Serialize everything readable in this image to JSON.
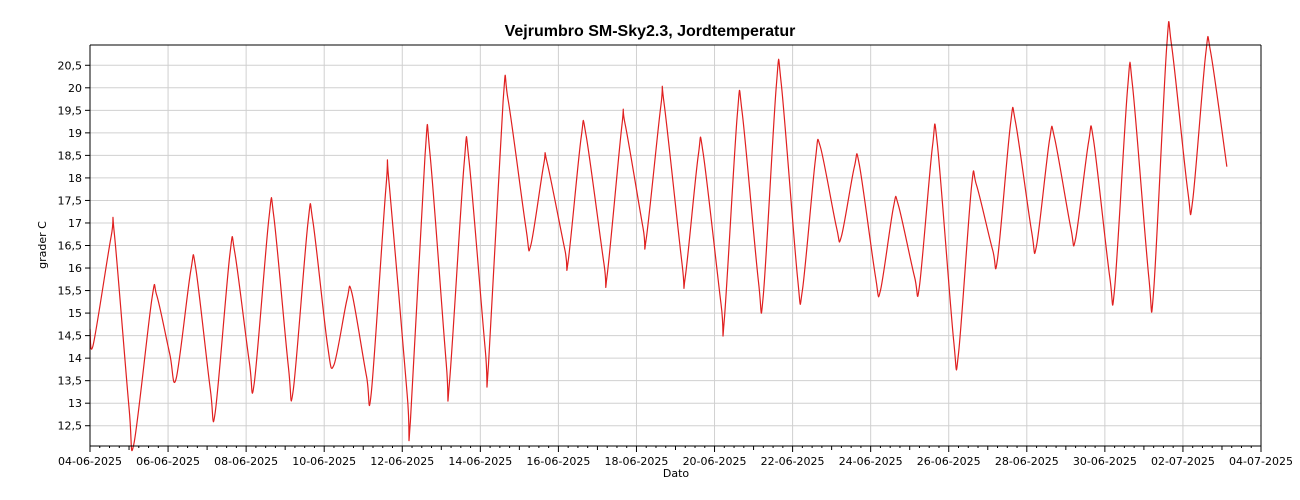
{
  "chart_data": {
    "type": "line",
    "title": "Vejrumbro SM-Sky2.3, Jordtemperatur",
    "xlabel": "Dato",
    "ylabel": "grader C",
    "xlim": [
      "2025-06-04",
      "2025-07-04"
    ],
    "ylim": [
      12.05,
      20.95
    ],
    "x_ticks": [
      "04-06-2025",
      "06-06-2025",
      "08-06-2025",
      "10-06-2025",
      "12-06-2025",
      "14-06-2025",
      "16-06-2025",
      "18-06-2025",
      "20-06-2025",
      "22-06-2025",
      "24-06-2025",
      "26-06-2025",
      "28-06-2025",
      "30-06-2025",
      "02-07-2025",
      "04-07-2025"
    ],
    "y_ticks": [
      "12,5",
      "13",
      "13,5",
      "14",
      "14,5",
      "15",
      "15,5",
      "16",
      "16,5",
      "17",
      "17,5",
      "18",
      "18,5",
      "19",
      "19,5",
      "20",
      "20,5"
    ],
    "y_tick_values": [
      12.5,
      13,
      13.5,
      14,
      14.5,
      15,
      15.5,
      16,
      16.5,
      17,
      17.5,
      18,
      18.5,
      19,
      19.5,
      20,
      20.5
    ],
    "grid": true,
    "series": [
      {
        "color": "#e02020",
        "x": [
          "2025-06-04 00:00",
          "2025-06-04 02:00",
          "2025-06-04 13:00",
          "2025-06-04 15:00",
          "2025-06-05 00:00",
          "2025-06-05 03:00",
          "2025-06-05 14:00",
          "2025-06-05 17:00",
          "2025-06-06 01:00",
          "2025-06-06 05:00",
          "2025-06-06 14:00",
          "2025-06-06 17:00",
          "2025-06-07 02:00",
          "2025-06-07 05:00",
          "2025-06-07 14:00",
          "2025-06-07 17:00",
          "2025-06-08 02:00",
          "2025-06-08 05:00",
          "2025-06-08 14:00",
          "2025-06-08 17:00",
          "2025-06-09 02:00",
          "2025-06-09 05:00",
          "2025-06-09 14:00",
          "2025-06-09 17:00",
          "2025-06-10 02:00",
          "2025-06-10 06:00",
          "2025-06-10 14:00",
          "2025-06-10 17:00",
          "2025-06-11 02:00",
          "2025-06-11 05:00",
          "2025-06-11 14:00",
          "2025-06-11 16:00",
          "2025-06-12 03:00",
          "2025-06-12 05:00",
          "2025-06-12 14:00",
          "2025-06-12 17:00",
          "2025-06-13 03:00",
          "2025-06-13 05:00",
          "2025-06-13 14:00",
          "2025-06-13 17:00",
          "2025-06-14 03:00",
          "2025-06-14 05:00",
          "2025-06-14 14:00",
          "2025-06-14 17:00",
          "2025-06-15 04:00",
          "2025-06-15 07:00",
          "2025-06-15 15:00",
          "2025-06-15 17:00",
          "2025-06-16 04:00",
          "2025-06-16 06:00",
          "2025-06-16 14:00",
          "2025-06-16 17:00",
          "2025-06-17 04:00",
          "2025-06-17 06:00",
          "2025-06-17 15:00",
          "2025-06-17 17:00",
          "2025-06-18 04:00",
          "2025-06-18 06:00",
          "2025-06-18 15:00",
          "2025-06-18 17:00",
          "2025-06-19 04:00",
          "2025-06-19 06:00",
          "2025-06-19 14:00",
          "2025-06-19 17:00",
          "2025-06-20 04:00",
          "2025-06-20 06:00",
          "2025-06-20 14:00",
          "2025-06-20 17:00",
          "2025-06-21 03:00",
          "2025-06-21 06:00",
          "2025-06-21 14:00",
          "2025-06-21 17:00",
          "2025-06-22 03:00",
          "2025-06-22 06:00",
          "2025-06-22 14:00",
          "2025-06-22 17:00",
          "2025-06-23 03:00",
          "2025-06-23 06:00",
          "2025-06-23 14:00",
          "2025-06-23 17:00",
          "2025-06-24 03:00",
          "2025-06-24 06:00",
          "2025-06-24 14:00",
          "2025-06-24 17:00",
          "2025-06-25 03:00",
          "2025-06-25 06:00",
          "2025-06-25 14:00",
          "2025-06-25 17:00",
          "2025-06-26 03:00",
          "2025-06-26 06:00",
          "2025-06-26 14:00",
          "2025-06-26 17:00",
          "2025-06-27 03:00",
          "2025-06-27 06:00",
          "2025-06-27 14:00",
          "2025-06-27 17:00",
          "2025-06-28 03:00",
          "2025-06-28 06:00",
          "2025-06-28 14:00",
          "2025-06-28 17:00",
          "2025-06-29 03:00",
          "2025-06-29 06:00",
          "2025-06-29 14:00",
          "2025-06-29 17:00",
          "2025-06-30 03:00",
          "2025-06-30 06:00",
          "2025-06-30 14:00",
          "2025-06-30 17:00",
          "2025-07-01 03:00",
          "2025-07-01 06:00",
          "2025-07-01 14:00",
          "2025-07-01 17:00",
          "2025-07-02 03:00",
          "2025-07-02 06:00",
          "2025-07-02 14:00",
          "2025-07-02 17:00",
          "2025-07-03 03:00"
        ],
        "y": [
          14.65,
          14.3,
          16.7,
          16.75,
          12.9,
          12.1,
          15.3,
          15.4,
          14.1,
          13.55,
          15.95,
          16.0,
          13.3,
          12.8,
          16.3,
          16.35,
          13.9,
          13.45,
          17.1,
          17.15,
          13.8,
          13.3,
          17.0,
          17.05,
          14.3,
          13.85,
          15.3,
          15.45,
          13.6,
          13.25,
          17.8,
          17.85,
          13.2,
          12.6,
          18.5,
          18.55,
          13.9,
          13.45,
          18.3,
          18.4,
          14.2,
          13.85,
          19.7,
          19.75,
          16.9,
          16.5,
          18.3,
          18.35,
          16.4,
          16.15,
          18.9,
          18.95,
          16.1,
          15.85,
          19.15,
          19.2,
          16.9,
          16.65,
          19.6,
          19.65,
          16.1,
          15.8,
          18.5,
          18.55,
          15.2,
          14.85,
          19.4,
          19.45,
          15.7,
          15.4,
          20.05,
          20.1,
          15.8,
          15.5,
          18.4,
          18.7,
          16.9,
          16.7,
          18.25,
          18.3,
          15.8,
          15.5,
          17.35,
          17.4,
          15.8,
          15.6,
          18.7,
          18.75,
          14.4,
          14.1,
          17.8,
          17.85,
          16.4,
          16.2,
          19.2,
          19.25,
          16.8,
          16.5,
          18.85,
          18.9,
          16.9,
          16.65,
          18.8,
          18.85,
          15.8,
          15.55,
          20.0,
          20.05,
          15.8,
          15.5,
          20.9,
          20.95,
          17.7,
          17.5,
          20.75,
          20.8,
          18.25
        ]
      }
    ]
  }
}
